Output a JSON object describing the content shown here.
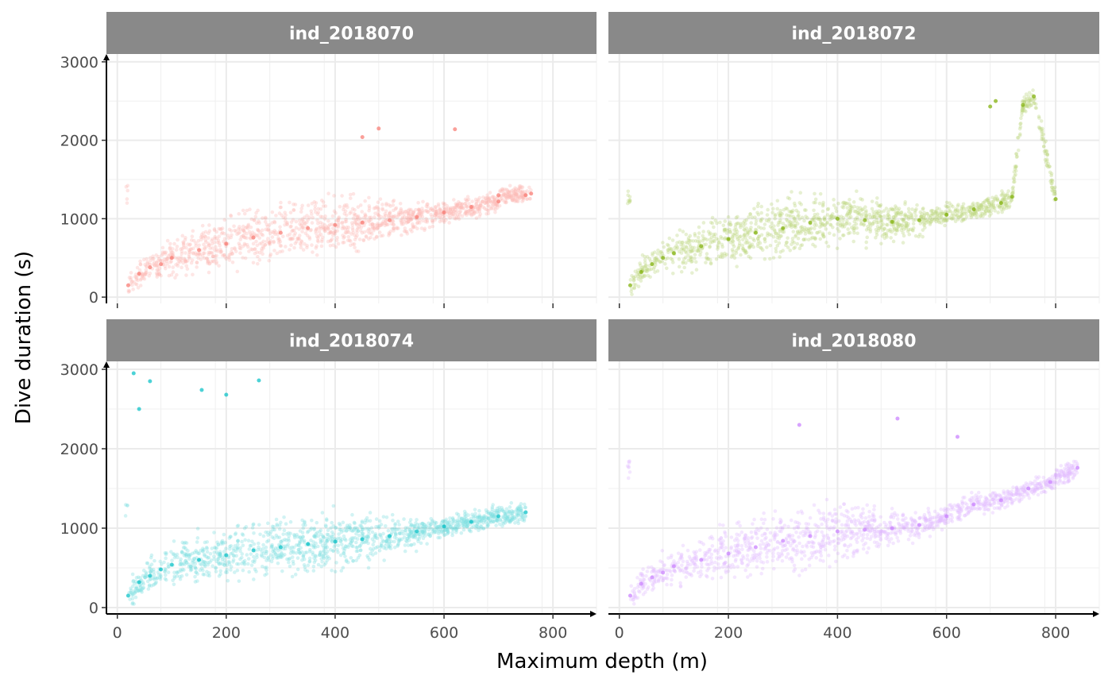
{
  "chart_data": {
    "type": "scatter",
    "xlabel": "Maximum depth (m)",
    "ylabel": "Dive duration (s)",
    "xlim": [
      -20,
      880
    ],
    "ylim": [
      -80,
      3100
    ],
    "xticks": [
      0,
      200,
      400,
      600,
      800
    ],
    "yticks": [
      0,
      1000,
      2000,
      3000
    ],
    "grid": true,
    "legend": "none",
    "panels": [
      {
        "name": "ind_2018070",
        "color": "#F8766D",
        "points": [
          [
            20,
            150
          ],
          [
            40,
            300
          ],
          [
            60,
            380
          ],
          [
            80,
            420
          ],
          [
            100,
            500
          ],
          [
            150,
            600
          ],
          [
            200,
            680
          ],
          [
            250,
            760
          ],
          [
            300,
            820
          ],
          [
            350,
            880
          ],
          [
            400,
            920
          ],
          [
            450,
            950
          ],
          [
            500,
            980
          ],
          [
            550,
            1020
          ],
          [
            600,
            1080
          ],
          [
            650,
            1150
          ],
          [
            700,
            1220
          ],
          [
            750,
            1300
          ],
          [
            760,
            1320
          ],
          [
            480,
            2150
          ],
          [
            620,
            2140
          ],
          [
            450,
            2040
          ],
          [
            700,
            1300
          ]
        ]
      },
      {
        "name": "ind_2018072",
        "color": "#7CAE00",
        "points": [
          [
            20,
            150
          ],
          [
            40,
            320
          ],
          [
            60,
            420
          ],
          [
            80,
            500
          ],
          [
            100,
            560
          ],
          [
            150,
            650
          ],
          [
            200,
            740
          ],
          [
            250,
            820
          ],
          [
            300,
            880
          ],
          [
            350,
            950
          ],
          [
            400,
            1000
          ],
          [
            450,
            980
          ],
          [
            500,
            960
          ],
          [
            550,
            980
          ],
          [
            600,
            1050
          ],
          [
            650,
            1120
          ],
          [
            700,
            1200
          ],
          [
            720,
            1280
          ],
          [
            800,
            1250
          ],
          [
            690,
            2500
          ],
          [
            740,
            2450
          ],
          [
            760,
            2560
          ],
          [
            680,
            2430
          ]
        ]
      },
      {
        "name": "ind_2018074",
        "color": "#00BFC4",
        "points": [
          [
            20,
            150
          ],
          [
            40,
            320
          ],
          [
            60,
            400
          ],
          [
            80,
            480
          ],
          [
            100,
            540
          ],
          [
            150,
            600
          ],
          [
            200,
            660
          ],
          [
            250,
            720
          ],
          [
            300,
            760
          ],
          [
            350,
            800
          ],
          [
            400,
            830
          ],
          [
            450,
            860
          ],
          [
            500,
            900
          ],
          [
            550,
            960
          ],
          [
            600,
            1020
          ],
          [
            650,
            1080
          ],
          [
            700,
            1150
          ],
          [
            750,
            1200
          ],
          [
            30,
            2950
          ],
          [
            60,
            2850
          ],
          [
            260,
            2860
          ],
          [
            200,
            2680
          ],
          [
            155,
            2740
          ],
          [
            40,
            2500
          ]
        ]
      },
      {
        "name": "ind_2018080",
        "color": "#C77CFF",
        "points": [
          [
            20,
            150
          ],
          [
            40,
            300
          ],
          [
            60,
            380
          ],
          [
            80,
            440
          ],
          [
            100,
            520
          ],
          [
            150,
            600
          ],
          [
            200,
            680
          ],
          [
            250,
            760
          ],
          [
            300,
            840
          ],
          [
            350,
            900
          ],
          [
            400,
            960
          ],
          [
            450,
            980
          ],
          [
            500,
            1000
          ],
          [
            550,
            1040
          ],
          [
            600,
            1150
          ],
          [
            650,
            1300
          ],
          [
            700,
            1350
          ],
          [
            750,
            1500
          ],
          [
            790,
            1580
          ],
          [
            840,
            1760
          ],
          [
            510,
            2380
          ],
          [
            330,
            2300
          ],
          [
            620,
            2150
          ]
        ]
      }
    ]
  }
}
